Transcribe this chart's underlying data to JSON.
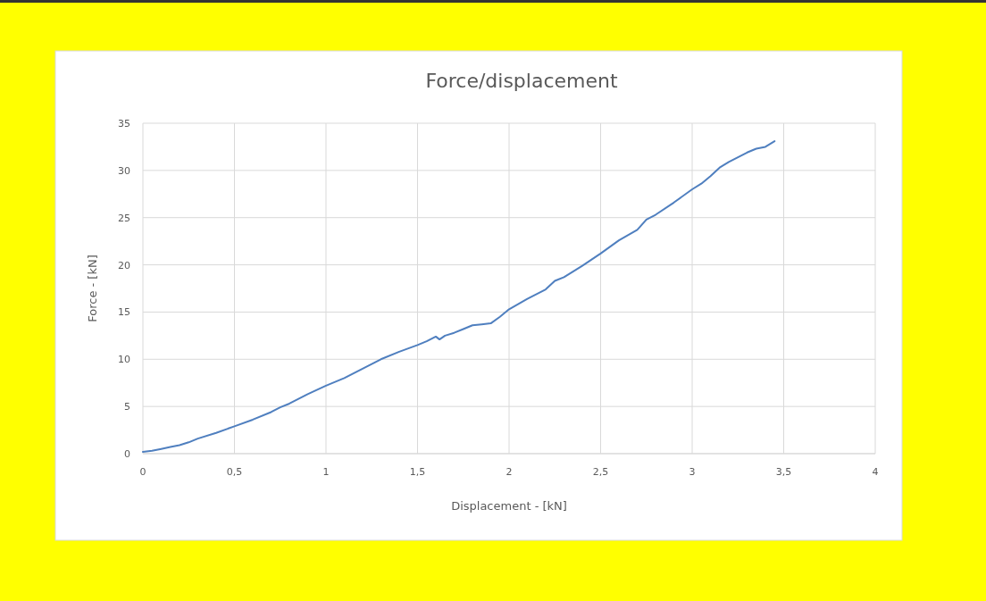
{
  "chart_data": {
    "type": "line",
    "title": "Force/displacement",
    "xlabel": "Displacement - [kN]",
    "ylabel": "Force - [kN]",
    "x": [
      0,
      0.05,
      0.1,
      0.15,
      0.2,
      0.25,
      0.3,
      0.4,
      0.5,
      0.6,
      0.7,
      0.75,
      0.8,
      0.9,
      1.0,
      1.1,
      1.2,
      1.25,
      1.3,
      1.4,
      1.5,
      1.55,
      1.6,
      1.62,
      1.65,
      1.7,
      1.75,
      1.8,
      1.85,
      1.9,
      1.95,
      2.0,
      2.1,
      2.2,
      2.25,
      2.3,
      2.4,
      2.5,
      2.6,
      2.7,
      2.75,
      2.8,
      2.9,
      3.0,
      3.05,
      3.1,
      3.15,
      3.2,
      3.3,
      3.35,
      3.4,
      3.45
    ],
    "series": [
      {
        "color": "#4f7fbf",
        "values": [
          0.2,
          0.3,
          0.5,
          0.7,
          0.9,
          1.2,
          1.6,
          2.2,
          2.9,
          3.6,
          4.4,
          4.9,
          5.3,
          6.3,
          7.2,
          8.0,
          9.0,
          9.5,
          10.0,
          10.8,
          11.5,
          11.9,
          12.4,
          12.1,
          12.5,
          12.8,
          13.2,
          13.6,
          13.7,
          13.8,
          14.5,
          15.3,
          16.4,
          17.4,
          18.3,
          18.7,
          19.9,
          21.2,
          22.6,
          23.7,
          24.8,
          25.3,
          26.6,
          28.0,
          28.6,
          29.4,
          30.3,
          30.9,
          31.9,
          32.3,
          32.5,
          33.1
        ]
      }
    ],
    "xlim": [
      0,
      4
    ],
    "xticks": [
      0,
      {
        "value": 0.5,
        "label": "0,5"
      },
      1,
      {
        "value": 1.5,
        "label": "1,5"
      },
      2,
      {
        "value": 2.5,
        "label": "2,5"
      },
      3,
      {
        "value": 3.5,
        "label": "3,5"
      },
      4
    ],
    "ylim": [
      0,
      35
    ],
    "yticks": [
      0,
      5,
      10,
      15,
      20,
      25,
      30,
      35
    ],
    "grid": true,
    "line_style": "solid",
    "marker": "none"
  }
}
